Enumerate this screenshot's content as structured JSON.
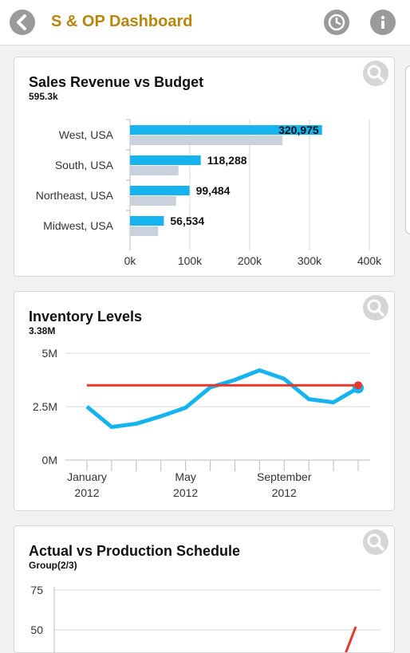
{
  "header": {
    "title": "S & OP Dashboard",
    "back_icon": "chevron-left-icon",
    "history_icon": "clock-icon",
    "info_icon": "info-icon"
  },
  "cards": {
    "sales": {
      "title": "Sales Revenue vs Budget",
      "subtitle": "595.3k"
    },
    "inventory": {
      "title": "Inventory Levels",
      "subtitle": "3.38M"
    },
    "production": {
      "title": "Actual vs Production Schedule",
      "subtitle": "Group(2/3)"
    }
  },
  "colors": {
    "accent": "#b8860b",
    "actual": "#16b4ef",
    "budget": "#c9d2dc",
    "target": "#e8362a"
  },
  "chart_data": [
    {
      "type": "bar",
      "orientation": "horizontal",
      "categories": [
        "West, USA",
        "South, USA",
        "Northeast, USA",
        "Midwest, USA"
      ],
      "series": [
        {
          "values": [
            320975,
            118288,
            99484,
            56534
          ]
        },
        {
          "values": [
            255000,
            81000,
            77000,
            47000
          ]
        }
      ],
      "value_labels": [
        "320,975",
        "118,288",
        "99,484",
        "56,534"
      ],
      "xticks": [
        "0k",
        "100k",
        "200k",
        "300k",
        "400k"
      ],
      "xlim": [
        0,
        400000
      ],
      "grid": true
    },
    {
      "type": "line",
      "x": [
        "2012-01",
        "2012-02",
        "2012-03",
        "2012-04",
        "2012-05",
        "2012-06",
        "2012-07",
        "2012-08",
        "2012-09",
        "2012-10",
        "2012-11",
        "2012-12"
      ],
      "xticks": [
        {
          "month": "January",
          "year": "2012"
        },
        {
          "month": "May",
          "year": "2012"
        },
        {
          "month": "September",
          "year": "2012"
        }
      ],
      "series": [
        {
          "values": [
            2.5,
            1.55,
            1.7,
            2.05,
            2.45,
            3.4,
            3.75,
            4.2,
            3.8,
            2.85,
            2.7,
            3.38
          ]
        },
        {
          "values": [
            3.5,
            3.5,
            3.5,
            3.5,
            3.5,
            3.5,
            3.5,
            3.5,
            3.5,
            3.5,
            3.5,
            3.5
          ]
        }
      ],
      "yticks": [
        "0M",
        "2.5M",
        "5M"
      ],
      "ylim": [
        0,
        5
      ],
      "grid": true
    },
    {
      "type": "line",
      "yticks": [
        "50",
        "75"
      ],
      "ylim": [
        40,
        75
      ],
      "grid": true
    }
  ]
}
